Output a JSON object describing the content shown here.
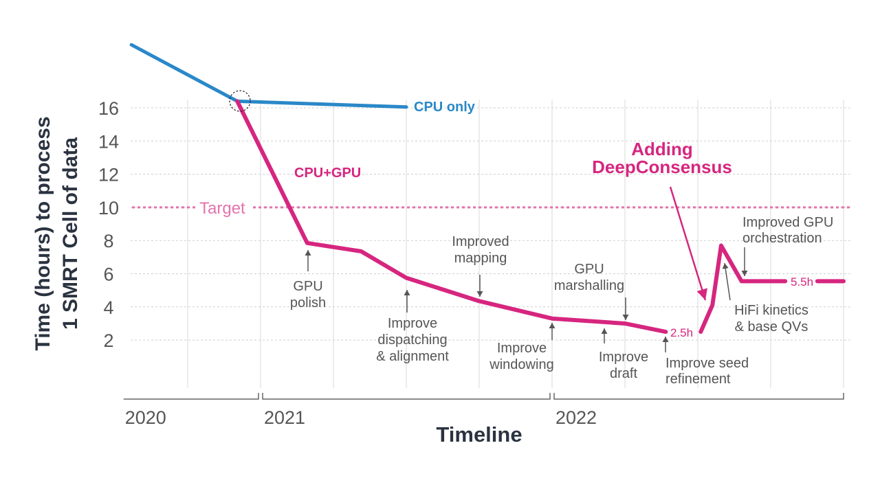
{
  "chart_data": {
    "type": "line",
    "title": "",
    "xlabel": "Timeline",
    "ylabel": [
      "Time (hours) to process",
      "1 SMRT Cell of data"
    ],
    "ylim": [
      0,
      20
    ],
    "xlim": [
      2020.53,
      2023.0
    ],
    "y_ticks": [
      16,
      14,
      12,
      10,
      8,
      6,
      4,
      2
    ],
    "x_periods": [
      {
        "label": "2020",
        "start": 2020.53,
        "end": 2021.0
      },
      {
        "label": "2021",
        "start": 2021.0,
        "end": 2022.0
      },
      {
        "label": "2022",
        "start": 2022.0,
        "end": 2023.0
      }
    ],
    "grid": true,
    "colors": {
      "cpu": "#2a88c8",
      "gpu": "#d6267f",
      "target": "#e374ad",
      "annotation": "#555555",
      "axis_title": "#2b3340"
    },
    "target": {
      "label": "Target",
      "value": 10
    },
    "series": [
      {
        "name": "CPU only",
        "color": "#2a88c8",
        "points": [
          [
            2020.557,
            19.8
          ],
          [
            2020.92,
            16.4
          ],
          [
            2021.5,
            16.05
          ]
        ]
      },
      {
        "name": "CPU+GPU",
        "color": "#d6267f",
        "points": [
          [
            2020.92,
            16.4
          ],
          [
            2021.16,
            7.85
          ],
          [
            2021.345,
            7.35
          ],
          [
            2021.5,
            5.75
          ],
          [
            2021.75,
            4.35
          ],
          [
            2022.0,
            3.3
          ],
          [
            2022.25,
            3.0
          ],
          [
            2022.39,
            2.5
          ],
          null,
          [
            2022.51,
            2.5
          ],
          [
            2022.55,
            4.1
          ],
          [
            2022.58,
            7.7
          ],
          [
            2022.65,
            5.55
          ],
          [
            2022.8,
            5.55
          ],
          null,
          [
            2022.91,
            5.55
          ],
          [
            2023.0,
            5.55
          ]
        ]
      }
    ],
    "value_labels": [
      "2.5h",
      "5.5h"
    ],
    "annotations": [
      {
        "lines": [
          "GPU",
          "polish"
        ]
      },
      {
        "lines": [
          "Improve",
          "dispatching",
          "& alignment"
        ]
      },
      {
        "lines": [
          "Improved",
          "mapping"
        ]
      },
      {
        "lines": [
          "Improve",
          "windowing"
        ]
      },
      {
        "lines": [
          "Improve",
          "draft"
        ]
      },
      {
        "lines": [
          "GPU",
          "marshalling"
        ]
      },
      {
        "lines": [
          "Improve seed",
          "refinement"
        ]
      },
      {
        "lines": [
          "HiFi kinetics",
          "& base QVs"
        ]
      },
      {
        "lines": [
          "Improved GPU",
          "orchestration"
        ]
      },
      {
        "lines": [
          "Adding",
          "DeepConsensus"
        ],
        "highlight": true
      }
    ]
  }
}
